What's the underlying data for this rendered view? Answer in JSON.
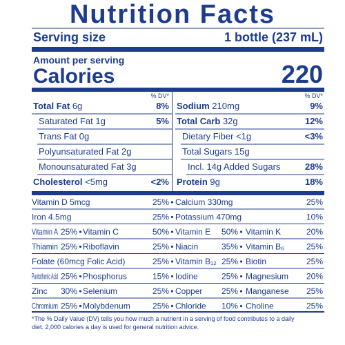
{
  "header": {
    "title": "Nutrition Facts",
    "serving_label": "Serving size",
    "serving_size": "1 bottle (237 mL)",
    "amount_label": "Amount per serving",
    "calories_label": "Calories",
    "calories": "220",
    "dv_header": "% DV*"
  },
  "nutrients": {
    "left": [
      {
        "name": "Total Fat",
        "amount": "6g",
        "dv": "8%",
        "level": 0
      },
      {
        "name": "Saturated Fat",
        "amount": "1g",
        "dv": "5%",
        "level": 1
      },
      {
        "name": "Trans Fat",
        "amount": "0g",
        "level": 1
      },
      {
        "name": "Polyunsaturated Fat",
        "amount": "2g",
        "level": 1
      },
      {
        "name": "Monounsaturated Fat",
        "amount": "3g",
        "level": 1
      },
      {
        "name": "Cholesterol",
        "amount": "<5mg",
        "dv": "<2%",
        "level": 0
      }
    ],
    "right": [
      {
        "name": "Sodium",
        "amount": "210mg",
        "dv": "9%",
        "level": 0
      },
      {
        "name": "Total Carb",
        "amount": "32g",
        "dv": "12%",
        "level": 0
      },
      {
        "name": "Dietary Fiber",
        "amount": "<1g",
        "dv": "<3%",
        "level": 1
      },
      {
        "name": "Total Sugars",
        "amount": "15g",
        "level": 1
      },
      {
        "name": "Incl. 14g Added Sugars",
        "dv": "28%",
        "level": 2
      },
      {
        "name": "Protein",
        "amount": "9g",
        "dv": "18%",
        "level": 0
      }
    ]
  },
  "vitamins": {
    "rows": [
      [
        {
          "name": "Vitamin D 5mcg",
          "dv": "25%"
        },
        {
          "name": "Calcium 330mg",
          "dv": "25%"
        }
      ],
      [
        {
          "name": "Iron 4.5mg",
          "dv": "25%"
        },
        {
          "name": "Potassium 470mg",
          "dv": "10%"
        }
      ],
      [
        {
          "name": "Vitamin A",
          "dv": "25%"
        },
        {
          "name": "Vitamin C",
          "dv": "50%"
        },
        {
          "name": "Vitamin E",
          "dv": "50%"
        },
        {
          "name": "Vitamin K",
          "dv": "20%"
        }
      ],
      [
        {
          "name": "Thiamin",
          "dv": "25%"
        },
        {
          "name": "Riboflavin",
          "dv": "25%"
        },
        {
          "name": "Niacin",
          "dv": "35%"
        },
        {
          "name": "Vitamin B₆",
          "dv": "25%"
        }
      ],
      [
        {
          "name": "Folate (60mcg Folic Acid)",
          "dv": "25%"
        },
        {
          "name": "Vitamin B₁₂",
          "dv": "25%"
        },
        {
          "name": "Biotin",
          "dv": "25%"
        }
      ],
      [
        {
          "name": "Pantothenic Acid",
          "dv": "25%"
        },
        {
          "name": "Phosphorus",
          "dv": "15%"
        },
        {
          "name": "Iodine",
          "dv": "25%"
        },
        {
          "name": "Magnesium",
          "dv": "20%"
        }
      ],
      [
        {
          "name": "Zinc",
          "dv": "30%"
        },
        {
          "name": "Selenium",
          "dv": "25%"
        },
        {
          "name": "Copper",
          "dv": "25%"
        },
        {
          "name": "Manganese",
          "dv": "25%"
        }
      ],
      [
        {
          "name": "Chromium",
          "dv": "25%"
        },
        {
          "name": "Molybdenum",
          "dv": "25%"
        },
        {
          "name": "Chloride",
          "dv": "10%"
        },
        {
          "name": "Choline",
          "dv": "25%"
        }
      ]
    ]
  },
  "footnote": {
    "line1": "*The % Daily Value (DV) tells you how much a nutrient in a serving of food contributes to a daily",
    "line2": "diet. 2,000 calories a day is used for general nutrition advice."
  }
}
